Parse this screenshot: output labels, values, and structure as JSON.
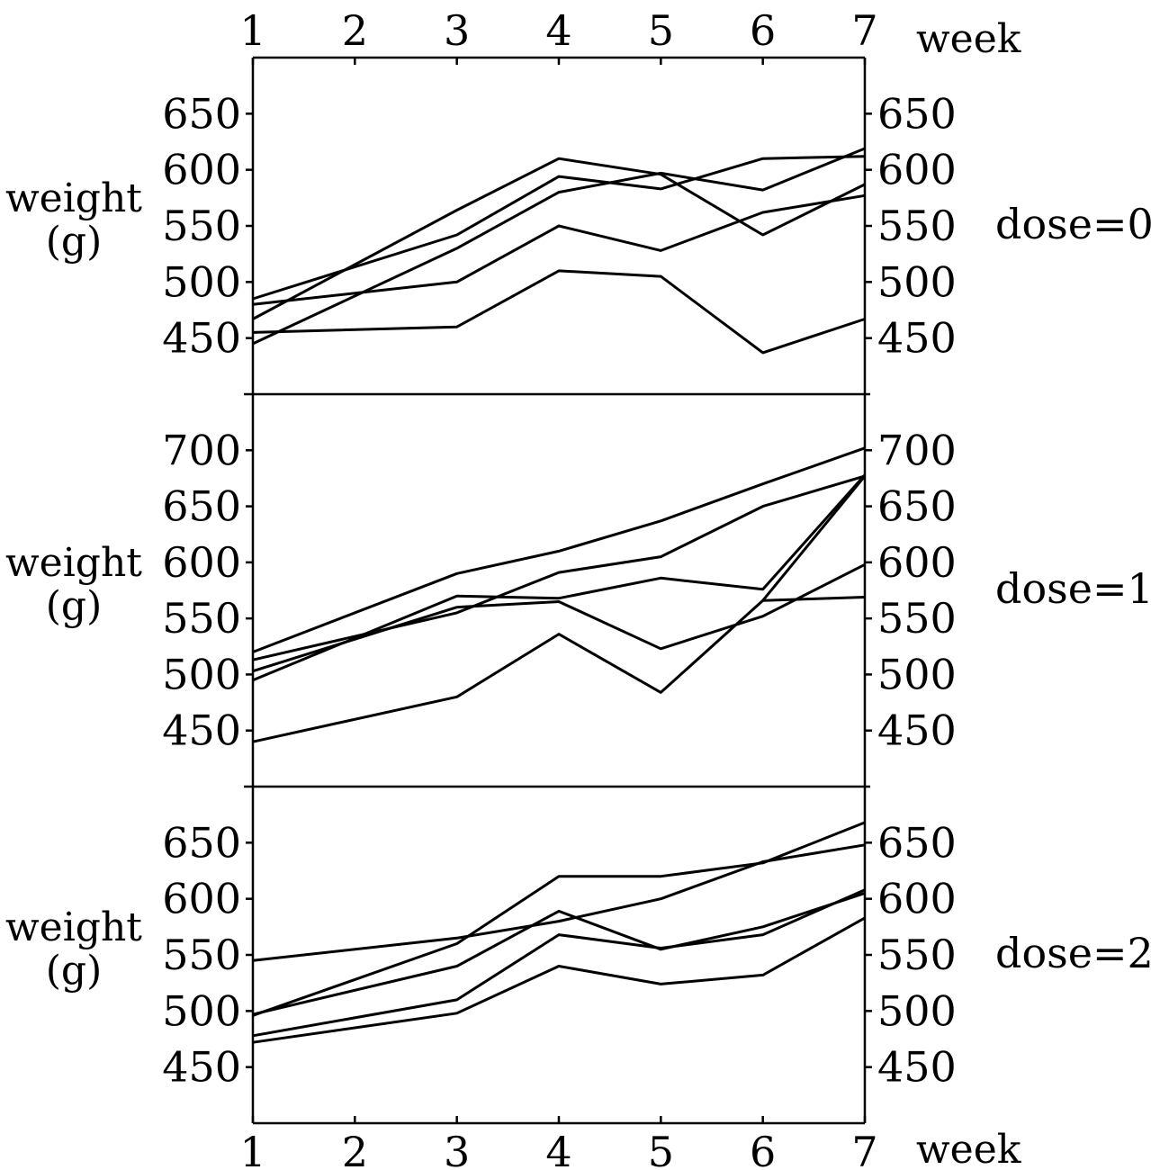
{
  "chart_data": {
    "type": "line",
    "x": [
      1,
      2,
      3,
      4,
      5,
      6,
      7
    ],
    "x_ticks": [
      "1",
      "2",
      "3",
      "4",
      "5",
      "6",
      "7"
    ],
    "xlabel": "week",
    "panels": [
      {
        "label": "dose=0",
        "ylabel_line1": "weight",
        "ylabel_line2": "(g)",
        "ylim": [
          400,
          700
        ],
        "yticks": [
          "450",
          "500",
          "550",
          "600",
          "650"
        ],
        "series": [
          {
            "x": [
              1,
              3,
              4,
              5,
              6,
              7
            ],
            "values": [
              455,
              460,
              510,
              505,
              437,
              467
            ]
          },
          {
            "x": [
              1,
              3,
              4,
              5,
              6,
              7
            ],
            "values": [
              480,
              500,
              550,
              528,
              562,
              577
            ]
          },
          {
            "x": [
              1,
              3,
              4,
              5,
              6,
              7
            ],
            "values": [
              485,
              542,
              594,
              583,
              610,
              612
            ]
          },
          {
            "x": [
              1,
              3,
              4,
              5,
              6,
              7
            ],
            "values": [
              445,
              530,
              580,
              597,
              582,
              619
            ]
          },
          {
            "x": [
              1,
              3,
              4,
              5,
              6,
              7
            ],
            "values": [
              467,
              564,
              610,
              596,
              542,
              587
            ]
          }
        ]
      },
      {
        "label": "dose=1",
        "ylabel_line1": "weight",
        "ylabel_line2": "(g)",
        "ylim": [
          400,
          750
        ],
        "yticks": [
          "450",
          "500",
          "550",
          "600",
          "650",
          "700"
        ],
        "series": [
          {
            "x": [
              1,
              3,
              4,
              5,
              6,
              7
            ],
            "values": [
              440,
              480,
              536,
              484,
              566,
              677
            ]
          },
          {
            "x": [
              1,
              3,
              4,
              5,
              6,
              7
            ],
            "values": [
              495,
              570,
              568,
              586,
              576,
              678
            ]
          },
          {
            "x": [
              1,
              3,
              4,
              5,
              6,
              7
            ],
            "values": [
              503,
              560,
              565,
              523,
              552,
              598
            ]
          },
          {
            "x": [
              1,
              3,
              4,
              5,
              6,
              7
            ],
            "values": [
              513,
              555,
              591,
              605,
              650,
              677
            ]
          },
          {
            "x": [
              1,
              3,
              4,
              5,
              6,
              7
            ],
            "values": [
              520,
              590,
              610,
              637,
              670,
              702
            ]
          },
          {
            "x": [
              6,
              7
            ],
            "values": [
              566,
              569
            ]
          }
        ]
      },
      {
        "label": "dose=2",
        "ylabel_line1": "weight",
        "ylabel_line2": "(g)",
        "ylim": [
          400,
          700
        ],
        "yticks": [
          "450",
          "500",
          "550",
          "600",
          "650"
        ],
        "series": [
          {
            "x": [
              1,
              3,
              4,
              5,
              6,
              7
            ],
            "values": [
              472,
              498,
              540,
              524,
              532,
              583
            ]
          },
          {
            "x": [
              1,
              3,
              4,
              5,
              6,
              7
            ],
            "values": [
              478,
              510,
              568,
              556,
              568,
              608
            ]
          },
          {
            "x": [
              1,
              3,
              4,
              5,
              6,
              7
            ],
            "values": [
              497,
              540,
              589,
              555,
              575,
              605
            ]
          },
          {
            "x": [
              1,
              3,
              4,
              5,
              6,
              7
            ],
            "values": [
              496,
              560,
              620,
              620,
              632,
              668
            ]
          },
          {
            "x": [
              1,
              3,
              4,
              5,
              6,
              7
            ],
            "values": [
              545,
              565,
              580,
              600,
              633,
              648
            ]
          }
        ]
      }
    ]
  }
}
